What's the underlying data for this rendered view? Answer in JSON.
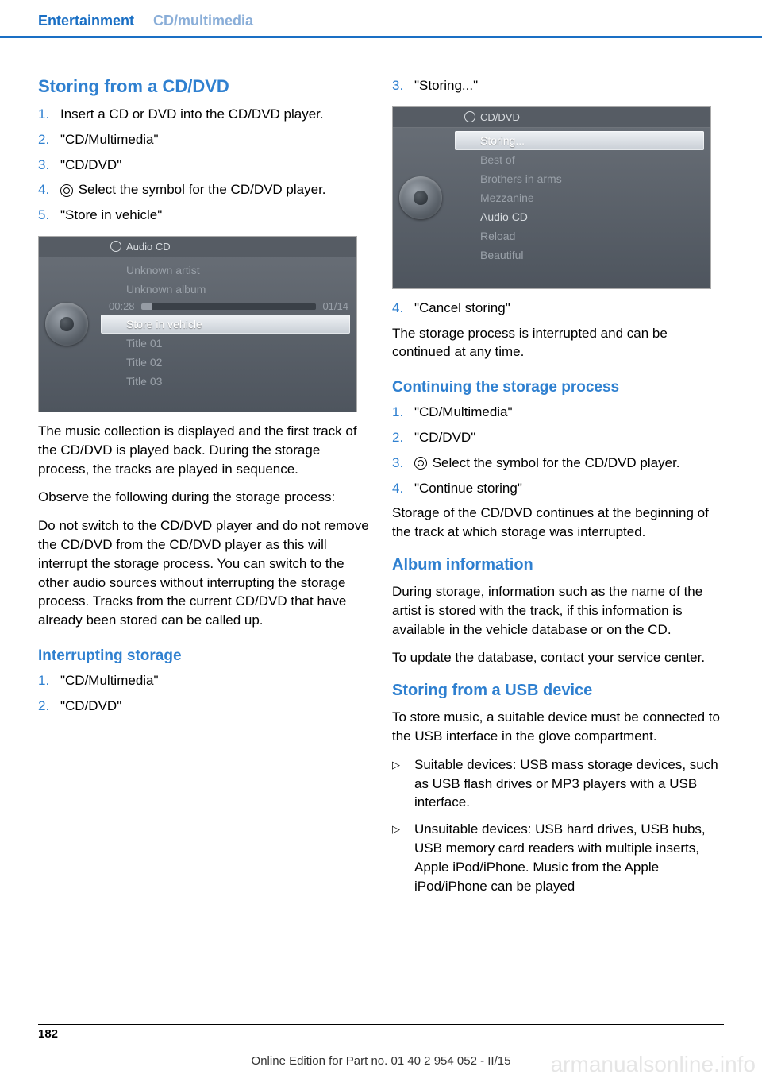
{
  "header": {
    "primary": "Entertainment",
    "secondary": "CD/multimedia"
  },
  "left": {
    "s1_title": "Storing from a CD/DVD",
    "s1_items": {
      "i1": "Insert a CD or DVD into the CD/DVD player.",
      "i2": "\"CD/Multimedia\"",
      "i3": "\"CD/DVD\"",
      "i4": " Select the symbol for the CD/DVD player.",
      "i5": "\"Store in vehicle\""
    },
    "shot1": {
      "header": "Audio CD",
      "r1": "Unknown artist",
      "r2": "Unknown album",
      "time": "00:28",
      "track": "01/14",
      "highlight": "Store in vehicle",
      "t1": "Title  01",
      "t2": "Title  02",
      "t3": "Title  03"
    },
    "p1": "The music collection is displayed and the first track of the CD/DVD is played back. During the storage process, the tracks are played in sequence.",
    "p2": "Observe the following during the storage process:",
    "p3": "Do not switch to the CD/DVD player and do not remove the CD/DVD from the CD/DVD player as this will interrupt the storage process. You can switch to the other audio sources without interrupting the storage process. Tracks from the current CD/DVD that have already been stored can be called up.",
    "s2_title": "Interrupting storage",
    "s2_items": {
      "i1": "\"CD/Multimedia\"",
      "i2": "\"CD/DVD\""
    }
  },
  "right": {
    "s1_items": {
      "i3": "\"Storing...\""
    },
    "shot2": {
      "header": "CD/DVD",
      "highlight": "Storing...",
      "r1": "Best of",
      "r2": "Brothers in arms",
      "r3": "Mezzanine",
      "r4": "Audio CD",
      "r5": "Reload",
      "r6": "Beautiful"
    },
    "s1_items2": {
      "i4": "\"Cancel storing\""
    },
    "p1": "The storage process is interrupted and can be continued at any time.",
    "s2_title": "Continuing the storage process",
    "s2_items": {
      "i1": "\"CD/Multimedia\"",
      "i2": "\"CD/DVD\"",
      "i3": " Select the symbol for the CD/DVD player.",
      "i4": "\"Continue storing\""
    },
    "p2": "Storage of the CD/DVD continues at the beginning of the track at which storage was interrupted.",
    "s3_title": "Album information",
    "p3": "During storage, information such as the name of the artist is stored with the track, if this information is available in the vehicle database or on the CD.",
    "p4": "To update the database, contact your service center.",
    "s4_title": "Storing from a USB device",
    "p5": "To store music, a suitable device must be connected to the USB interface in the glove compartment.",
    "ul": {
      "u1": "Suitable devices: USB mass storage devices, such as USB flash drives or MP3 players with a USB interface.",
      "u2": "Unsuitable devices: USB hard drives, USB hubs, USB memory card readers with multiple inserts, Apple iPod/iPhone. Music from the Apple iPod/iPhone can be played"
    }
  },
  "footer": {
    "page": "182",
    "text": "Online Edition for Part no. 01 40 2 954 052 - II/15"
  },
  "watermark": "armanualsonline.info",
  "numbers": {
    "n1": "1.",
    "n2": "2.",
    "n3": "3.",
    "n4": "4.",
    "n5": "5."
  },
  "marker": "▷"
}
